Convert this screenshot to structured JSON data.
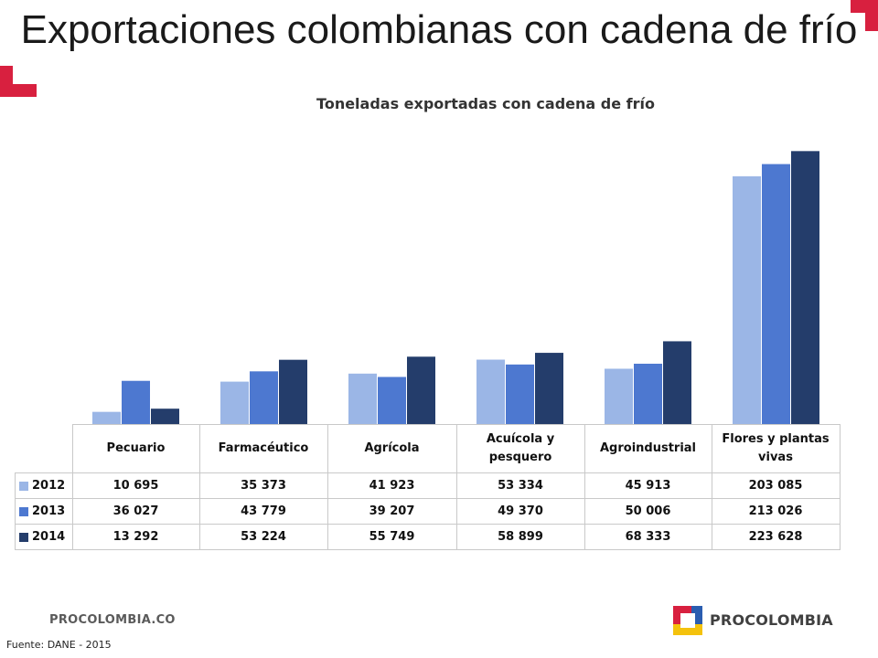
{
  "slide": {
    "title": "Exportaciones colombianas con cadena de frío",
    "footer_url": "PROCOLOMBIA.CO",
    "logo_text": "PROCOLOMBIA",
    "source": "Fuente: DANE - 2015",
    "accent_color": "#d8203f"
  },
  "chart_data": {
    "type": "bar",
    "title": "Toneladas exportadas con cadena de frío",
    "categories": [
      "Pecuario",
      "Farmacéutico",
      "Agrícola",
      "Acuícola y pesquero",
      "Agroindustrial",
      "Flores y plantas vivas"
    ],
    "series": [
      {
        "name": "2012",
        "color": "#9bb6e6",
        "values": [
          10695,
          35373,
          41923,
          53334,
          45913,
          203085
        ],
        "labels": [
          "10 695",
          "35 373",
          "41 923",
          "53 334",
          "45 913",
          "203 085"
        ]
      },
      {
        "name": "2013",
        "color": "#4d78d0",
        "values": [
          36027,
          43779,
          39207,
          49370,
          50006,
          213026
        ],
        "labels": [
          "36 027",
          "43 779",
          "39 207",
          "49 370",
          "50 006",
          "213 026"
        ]
      },
      {
        "name": "2014",
        "color": "#243d6b",
        "values": [
          13292,
          53224,
          55749,
          58899,
          68333,
          223628
        ],
        "labels": [
          "13 292",
          "53 224",
          "55 749",
          "58 899",
          "68 333",
          "223 628"
        ]
      }
    ],
    "ylim": [
      0,
      250000
    ],
    "grid": false,
    "legend": "data-table"
  }
}
